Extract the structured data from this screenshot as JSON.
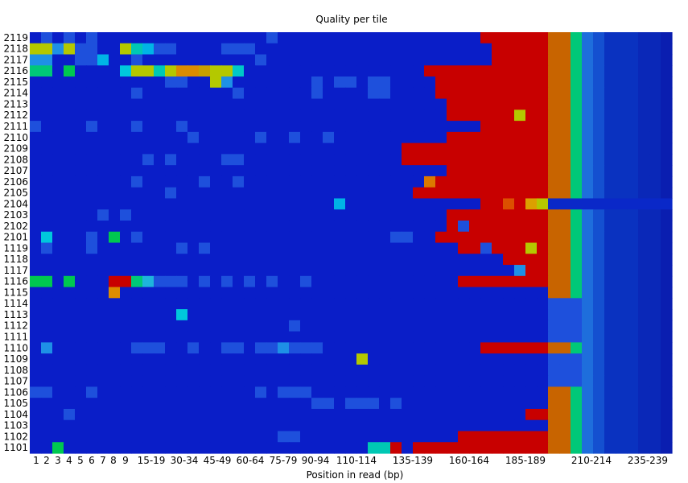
{
  "chart_data": {
    "type": "heatmap",
    "title": "Quality per tile",
    "xlabel": "Position in read (bp)",
    "ylabel": "",
    "x_tick_labels": [
      "1",
      "2",
      "3",
      "4",
      "5",
      "6",
      "7",
      "8",
      "9",
      "15-19",
      "30-34",
      "45-49",
      "60-64",
      "75-79",
      "90-94",
      "110-114",
      "135-139",
      "160-164",
      "185-189",
      "210-214",
      "235-239"
    ],
    "y_tick_labels": [
      "2119",
      "2118",
      "2117",
      "2116",
      "2115",
      "2114",
      "2113",
      "2112",
      "2111",
      "2110",
      "2109",
      "2108",
      "2107",
      "2106",
      "2105",
      "2104",
      "2103",
      "2102",
      "2101",
      "1119",
      "1118",
      "1117",
      "1116",
      "1115",
      "1114",
      "1113",
      "1112",
      "1111",
      "1110",
      "1109",
      "1108",
      "1107",
      "1106",
      "1105",
      "1104",
      "1103",
      "1102",
      "1101"
    ],
    "colors": {
      "baseline": "#0a1ec8",
      "scale": [
        "#0000c0",
        "#1e50dc",
        "#00b4e6",
        "#00c890",
        "#b4c800",
        "#dc7800",
        "#c80000"
      ],
      "band_orange": "#c86400",
      "band_green": "#00c878",
      "band_lightblue": "#1e6edc"
    },
    "uncertain": "Exact per-cell deviation values are estimated visually from the colour map."
  }
}
